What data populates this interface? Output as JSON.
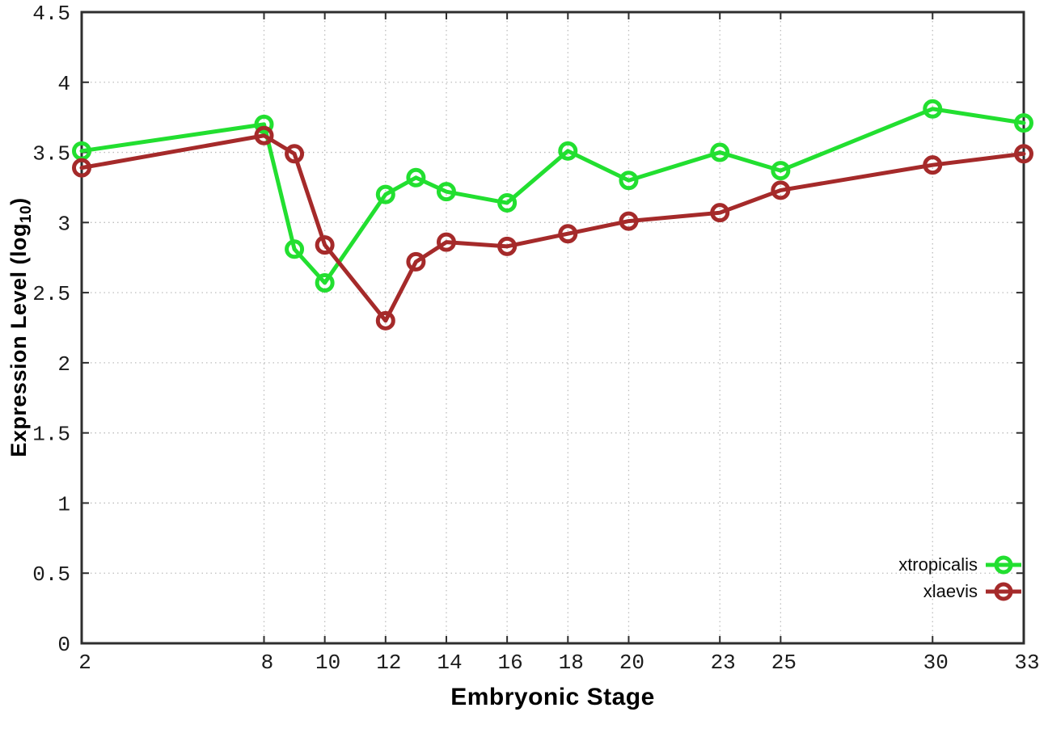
{
  "figure": {
    "background": "#ffffff",
    "border_color": "#2e2e2e",
    "grid_color": "#bdbdbd",
    "tick_text_color": "#1c1c1c"
  },
  "ylabel_parts": {
    "prefix": "Expression Level (log",
    "subscript": "10",
    "suffix": ")"
  },
  "chart_data": {
    "type": "line",
    "title": "",
    "xlabel": "Embryonic Stage",
    "ylabel": "Expression Level (log10)",
    "x": [
      2,
      8,
      9,
      10,
      12,
      13,
      14,
      16,
      18,
      20,
      23,
      25,
      30,
      33
    ],
    "series": [
      {
        "name": "xtropicalis",
        "color": "#22DF30",
        "values": [
          3.51,
          3.7,
          2.81,
          2.57,
          3.2,
          3.32,
          3.22,
          3.14,
          3.51,
          3.3,
          3.5,
          3.37,
          3.81,
          3.71
        ]
      },
      {
        "name": "xlaevis",
        "color": "#A52A2A",
        "values": [
          3.39,
          3.62,
          3.49,
          2.84,
          2.3,
          2.72,
          2.86,
          2.83,
          2.92,
          3.01,
          3.07,
          3.23,
          3.41,
          3.49
        ]
      }
    ],
    "xticks": [
      2,
      8,
      10,
      12,
      14,
      16,
      18,
      20,
      23,
      25,
      30,
      33
    ],
    "yticks": [
      0,
      0.5,
      1,
      1.5,
      2,
      2.5,
      3,
      3.5,
      4,
      4.5
    ],
    "xlim": [
      2,
      33
    ],
    "ylim": [
      0,
      4.5
    ],
    "grid": true,
    "grid_style": "dotted",
    "marker": "open-circle",
    "line_width": 5,
    "legend_position": "bottom-right"
  }
}
